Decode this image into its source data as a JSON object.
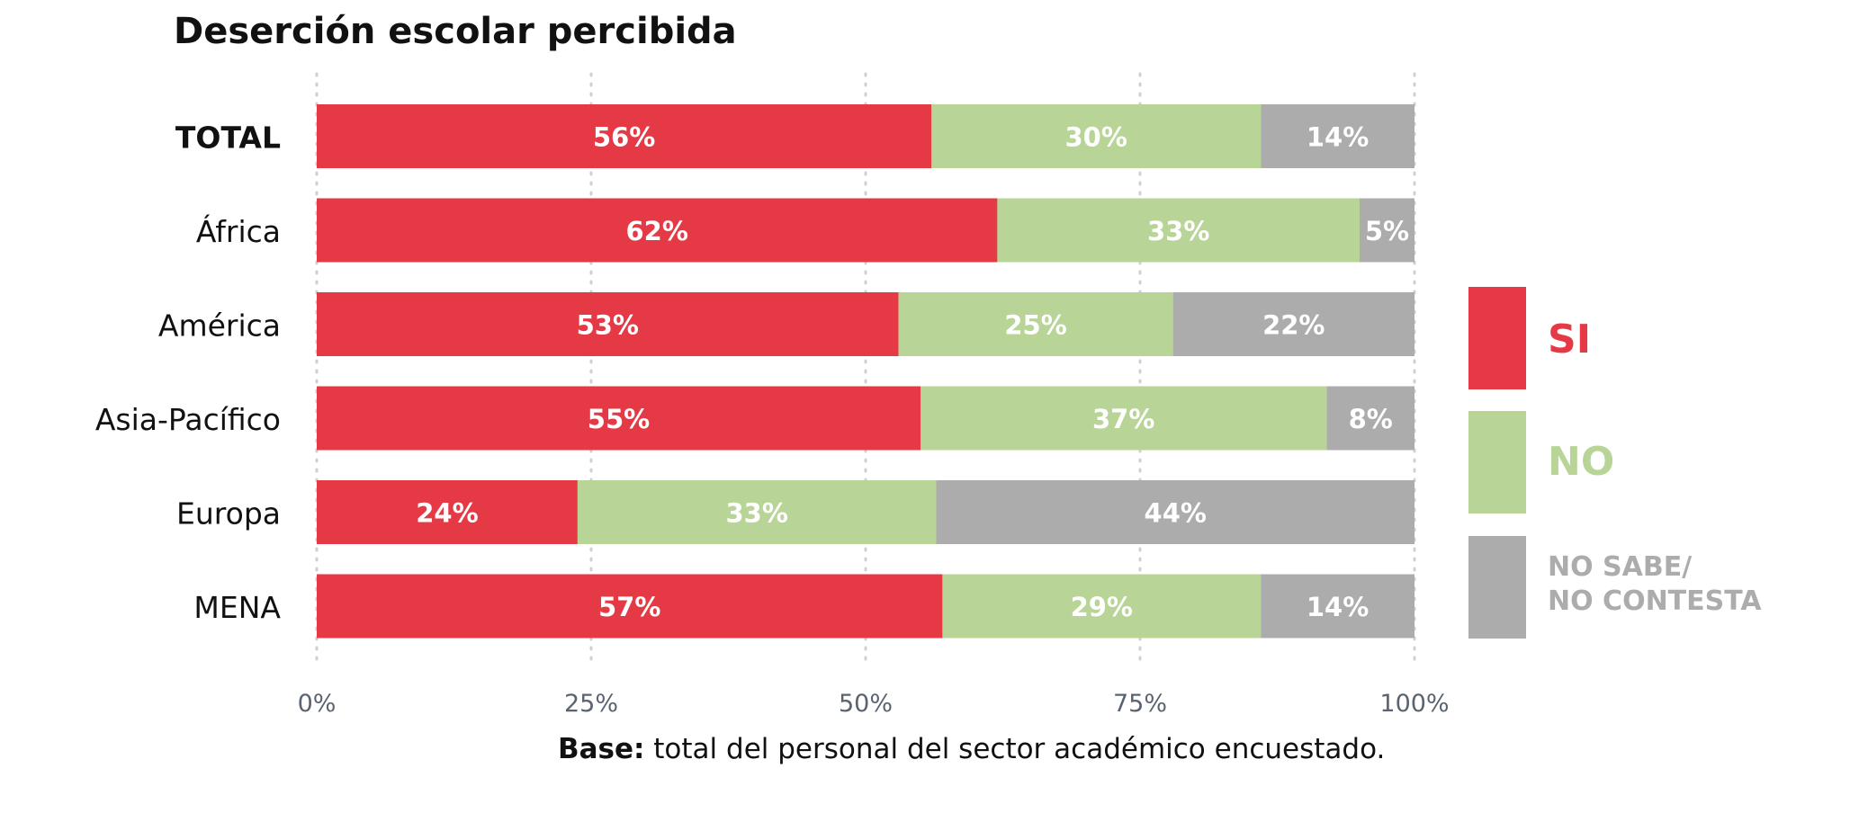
{
  "chart_data": {
    "type": "bar",
    "orientation": "horizontal",
    "stacked": true,
    "title": "Deserción escolar percibida",
    "categories": [
      "TOTAL",
      "África",
      "América",
      "Asia-Pacífico",
      "Europa",
      "MENA"
    ],
    "series": [
      {
        "name": "SI",
        "color": "#e63946",
        "values": [
          56,
          62,
          53,
          55,
          24,
          57
        ],
        "labels": [
          "56%",
          "62%",
          "53%",
          "55%",
          "24%",
          "57%"
        ]
      },
      {
        "name": "NO",
        "color": "#b8d496",
        "values": [
          30,
          33,
          25,
          37,
          33,
          29
        ],
        "labels": [
          "30%",
          "33%",
          "25%",
          "37%",
          "33%",
          "29%"
        ]
      },
      {
        "name": "NO SABE/ NO CONTESTA",
        "color": "#acacac",
        "values": [
          14,
          5,
          22,
          8,
          44,
          14
        ],
        "labels": [
          "14%",
          "5%",
          "22%",
          "8%",
          "44%",
          "14%"
        ]
      }
    ],
    "xlim": [
      0,
      100
    ],
    "xticks": [
      "0%",
      "25%",
      "50%",
      "75%",
      "100%"
    ],
    "grid": "vertical-dotted",
    "legend_position": "right"
  },
  "legend": [
    {
      "lines": [
        "SI"
      ],
      "color": "#e63946"
    },
    {
      "lines": [
        "NO"
      ],
      "color": "#b8d496"
    },
    {
      "lines": [
        "NO SABE/",
        "NO CONTESTA"
      ],
      "color": "#acacac"
    }
  ],
  "footnote": {
    "bold": "Base:",
    "text": " total del personal del sector académico encuestado."
  },
  "colors": {
    "axis_text": "#5a6470",
    "grid": "#d0d0d0",
    "label_text": "#ffffff"
  }
}
